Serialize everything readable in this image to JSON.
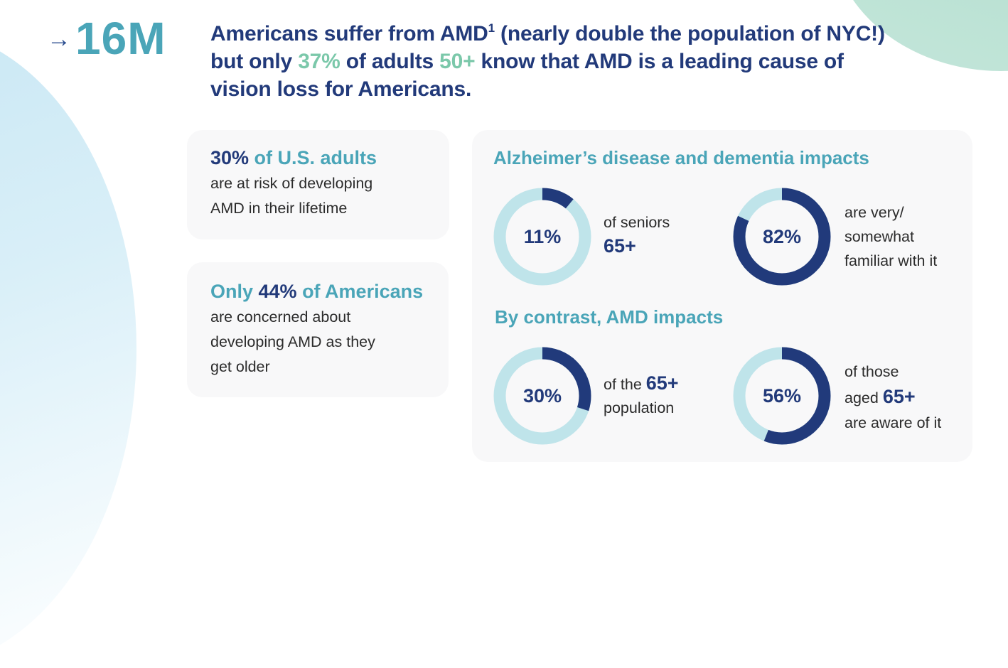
{
  "colors": {
    "navy": "#223a7a",
    "teal": "#4aa5b8",
    "green": "#7bc8aa",
    "ring_track": "#bfe4ea",
    "ring_fill": "#213a7b",
    "card_bg": "#f8f8f9"
  },
  "headline_stat": {
    "arrow_icon": "→",
    "value": "16M"
  },
  "headline": {
    "part1": "Americans suffer from AMD",
    "footnote": "1",
    "part2": " (nearly double the population of NYC!) but only ",
    "pct": "37%",
    "part3": " of adults ",
    "age": "50+",
    "part4": " know that AMD is a leading cause of vision loss for Americans."
  },
  "card_risk": {
    "value": "30%",
    "title_rest": " of U.S. adults",
    "line1": "are at risk of developing",
    "line2": "AMD in their lifetime"
  },
  "card_concern": {
    "title_pre": "Only ",
    "value": "44%",
    "title_rest": " of Americans",
    "line1": "are concerned about",
    "line2": "developing AMD as they",
    "line3": "get older"
  },
  "impacts": {
    "alz_title": "Alzheimer’s disease and dementia impacts",
    "amd_title": "By contrast, AMD impacts",
    "stats": [
      {
        "label": "11%",
        "percent": 11,
        "desc_line1": "of seniors",
        "desc_bold": "65+"
      },
      {
        "label": "82%",
        "percent": 82,
        "desc_line1": "are very/",
        "desc_line2": "somewhat",
        "desc_line3": "familiar with it"
      },
      {
        "label": "30%",
        "percent": 30,
        "desc_pre": "of the ",
        "desc_bold": "65+",
        "desc_line2": "population"
      },
      {
        "label": "56%",
        "percent": 56,
        "desc_line1": "of those",
        "desc_pre": "aged ",
        "desc_bold": "65+",
        "desc_line3": "are aware of it"
      }
    ]
  }
}
